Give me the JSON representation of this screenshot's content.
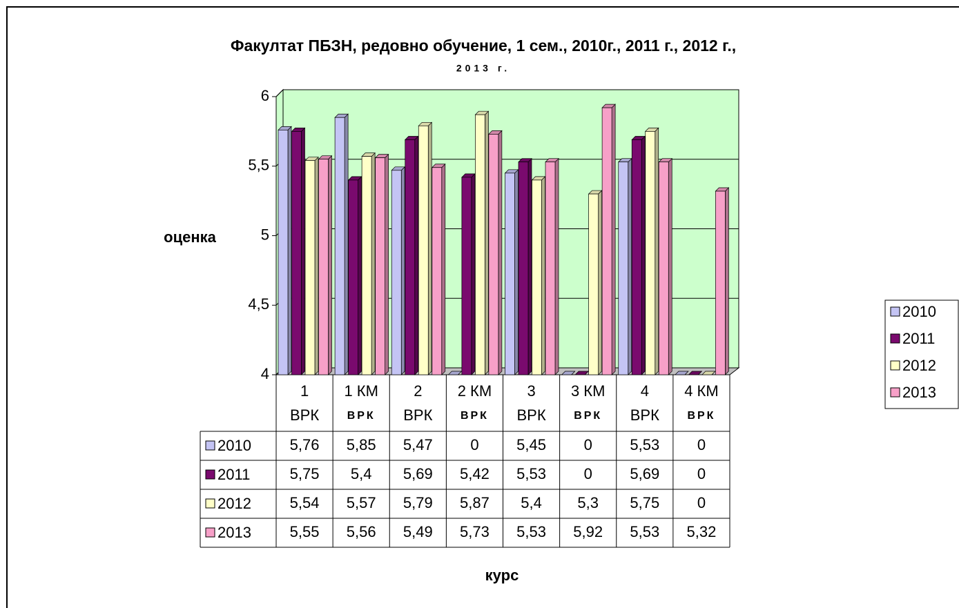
{
  "chart_data": {
    "type": "bar3d",
    "title": "Факултат ПБЗН, редовно обучение, 1 сем., 2010г., 2011 г., 2012 г.,",
    "subtitle": "2013 г.",
    "y_label": "оценка",
    "x_label": "курс",
    "categories": [
      [
        "1",
        "ВРК"
      ],
      [
        "1 КМ",
        "ВРК"
      ],
      [
        "2",
        "ВРК"
      ],
      [
        "2 КМ",
        "ВРК"
      ],
      [
        "3",
        "ВРК"
      ],
      [
        "3 КМ",
        "ВРК"
      ],
      [
        "4",
        "ВРК"
      ],
      [
        "4 КМ",
        "ВРК"
      ]
    ],
    "series": [
      {
        "name": "2010",
        "color": "#c4c4f4",
        "values": [
          5.76,
          5.85,
          5.47,
          0,
          5.45,
          0,
          5.53,
          0
        ],
        "value_labels": [
          "5,76",
          "5,85",
          "5,47",
          "0",
          "5,45",
          "0",
          "5,53",
          "0"
        ]
      },
      {
        "name": "2011",
        "color": "#7a0a6e",
        "values": [
          5.75,
          5.4,
          5.69,
          5.42,
          5.53,
          0,
          5.69,
          0
        ],
        "value_labels": [
          "5,75",
          "5,4",
          "5,69",
          "5,42",
          "5,53",
          "0",
          "5,69",
          "0"
        ]
      },
      {
        "name": "2012",
        "color": "#ffffc8",
        "values": [
          5.54,
          5.57,
          5.79,
          5.87,
          5.4,
          5.3,
          5.75,
          0
        ],
        "value_labels": [
          "5,54",
          "5,57",
          "5,79",
          "5,87",
          "5,4",
          "5,3",
          "5,75",
          "0"
        ]
      },
      {
        "name": "2013",
        "color": "#f7a0c8",
        "values": [
          5.55,
          5.56,
          5.49,
          5.73,
          5.53,
          5.92,
          5.53,
          5.32
        ],
        "value_labels": [
          "5,55",
          "5,56",
          "5,49",
          "5,73",
          "5,53",
          "5,92",
          "5,53",
          "5,32"
        ]
      }
    ],
    "ylim": [
      4,
      6
    ],
    "yticks": [
      4,
      {
        "value": 4.5,
        "label": "4,5"
      },
      5,
      {
        "value": 5.5,
        "label": "5,5"
      },
      6
    ],
    "grid": true,
    "plot_background": "#ccffcc",
    "legend": "right"
  }
}
